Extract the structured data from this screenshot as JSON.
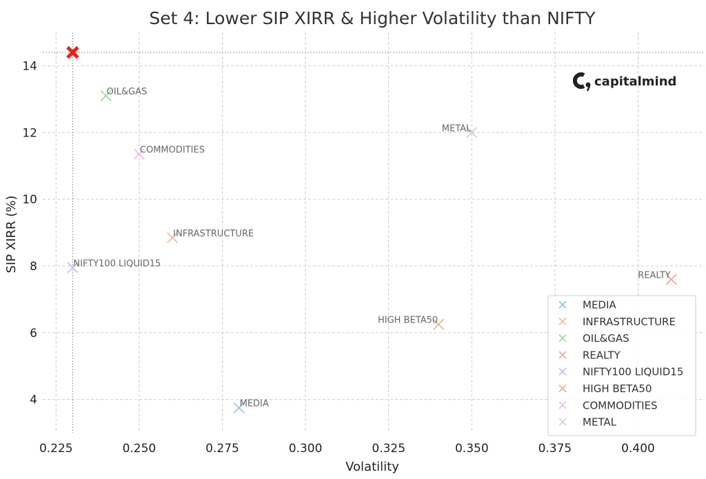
{
  "chart_data": {
    "type": "scatter",
    "title": "Set 4: Lower SIP XIRR & Higher Volatility than NIFTY",
    "xlabel": "Volatility",
    "ylabel": "SIP XIRR (%)",
    "xlim": [
      0.221,
      0.42
    ],
    "ylim": [
      3.0,
      15.0
    ],
    "x_ticks": [
      "0.225",
      "0.250",
      "0.275",
      "0.300",
      "0.325",
      "0.350",
      "0.375",
      "0.400"
    ],
    "x_tick_values": [
      0.225,
      0.25,
      0.275,
      0.3,
      0.325,
      0.35,
      0.375,
      0.4
    ],
    "y_ticks": [
      "4",
      "6",
      "8",
      "10",
      "12",
      "14"
    ],
    "y_tick_values": [
      4,
      6,
      8,
      10,
      12,
      14
    ],
    "grid": true,
    "legend_position": "bottom-right",
    "series": [
      {
        "name": "MEDIA",
        "label": "MEDIA",
        "x": 0.28,
        "y": 3.75,
        "color": "#8ec4e8",
        "label_side": "right"
      },
      {
        "name": "INFRASTRUCTURE",
        "label": "INFRASTRUCTURE",
        "x": 0.26,
        "y": 8.85,
        "color": "#f5b584",
        "label_side": "right"
      },
      {
        "name": "OIL&GAS",
        "label": "OIL&GAS",
        "x": 0.24,
        "y": 13.1,
        "color": "#8ed893",
        "label_side": "right"
      },
      {
        "name": "REALTY",
        "label": "REALTY",
        "x": 0.41,
        "y": 7.6,
        "color": "#f2a09c",
        "label_side": "left"
      },
      {
        "name": "NIFTY100 LIQUID15",
        "label": "NIFTY100 LIQUID15",
        "x": 0.23,
        "y": 7.95,
        "color": "#c4b5ee",
        "label_side": "right"
      },
      {
        "name": "HIGH BETA50",
        "label": "HIGH BETA50",
        "x": 0.34,
        "y": 6.25,
        "color": "#dbb38f",
        "label_side": "left"
      },
      {
        "name": "COMMODITIES",
        "label": "COMMODITIES",
        "x": 0.25,
        "y": 11.35,
        "color": "#f3b3e3",
        "label_side": "right"
      },
      {
        "name": "METAL",
        "label": "METAL",
        "x": 0.35,
        "y": 12.0,
        "color": "#cfcfcf",
        "label_side": "left"
      }
    ],
    "reference": {
      "x": 0.23,
      "y": 14.4,
      "color": "#e8221b"
    }
  },
  "brand": {
    "name": "capitalmind"
  }
}
